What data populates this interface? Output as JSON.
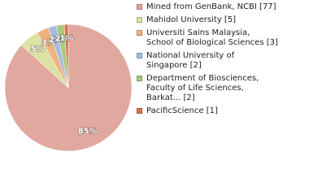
{
  "chart_data": {
    "type": "pie",
    "categories": [
      "Mined from GenBank, NCBI [77]",
      "Mahidol University [5]",
      "Universiti Sains Malaysia,\nSchool of Biological Sciences [3]",
      "National University of\nSingapore [2]",
      "Department of Biosciences,\nFaculty of Life Sciences,\nBarkat... [2]",
      "PacificScience [1]"
    ],
    "values": [
      85,
      5,
      3,
      2,
      2,
      1
    ],
    "value_labels": [
      "85%",
      "5%",
      "3%",
      "2%",
      "2%",
      "1%"
    ],
    "colors": [
      "#e1a89f",
      "#dbe2a4",
      "#f0b27e",
      "#a5bbe0",
      "#a9c882",
      "#e07153"
    ]
  }
}
